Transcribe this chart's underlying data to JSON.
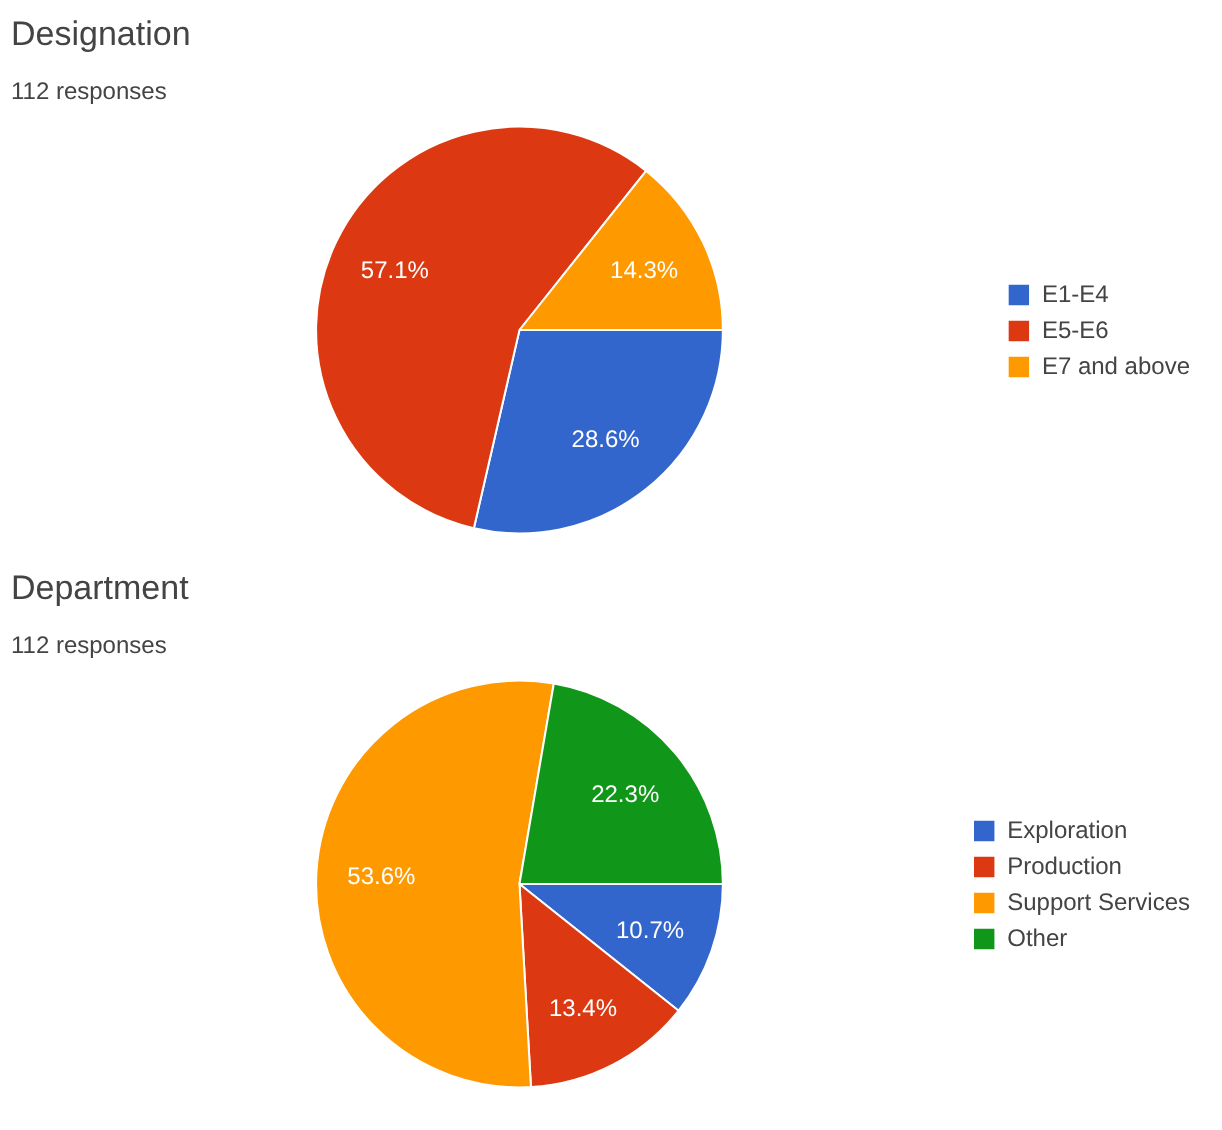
{
  "chart_data": [
    {
      "type": "pie",
      "title": "Designation",
      "subtitle": "112 responses",
      "categories": [
        "E1-E4",
        "E5-E6",
        "E7 and above"
      ],
      "values": [
        28.6,
        57.1,
        14.3
      ],
      "value_labels": [
        "28.6%",
        "57.1%",
        "14.3%"
      ],
      "colors": [
        "#3366cc",
        "#dc3912",
        "#ff9900"
      ],
      "legend": "right"
    },
    {
      "type": "pie",
      "title": "Department",
      "subtitle": "112 responses",
      "categories": [
        "Exploration",
        "Production",
        "Support Services",
        "Other"
      ],
      "values": [
        10.7,
        13.4,
        53.6,
        22.3
      ],
      "value_labels": [
        "10.7%",
        "13.4%",
        "53.6%",
        "22.3%"
      ],
      "colors": [
        "#3366cc",
        "#dc3912",
        "#ff9900",
        "#109618"
      ],
      "legend": "right"
    }
  ]
}
